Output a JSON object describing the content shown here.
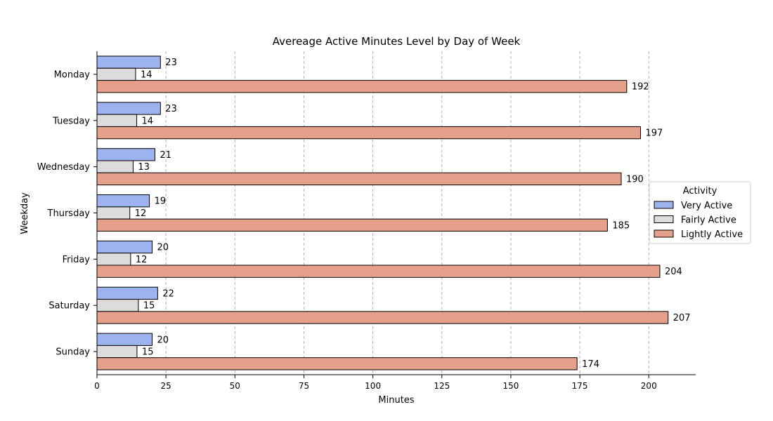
{
  "chart_data": {
    "type": "bar",
    "orientation": "horizontal",
    "title": "Avereage Active Minutes Level by Day of Week",
    "xlabel": "Minutes",
    "ylabel": "Weekday",
    "categories": [
      "Monday",
      "Tuesday",
      "Wednesday",
      "Thursday",
      "Friday",
      "Saturday",
      "Sunday"
    ],
    "series": [
      {
        "name": "Very Active",
        "color": "#9db3f0",
        "values": [
          23,
          23,
          21,
          19,
          20,
          22,
          20
        ],
        "value_labels": [
          "23",
          "23",
          "21",
          "19",
          "20",
          "22",
          "20"
        ]
      },
      {
        "name": "Fairly Active",
        "color": "#dcdcdc",
        "values": [
          14,
          14.4,
          13.1,
          11.9,
          12.2,
          15,
          14.5
        ],
        "value_labels": [
          "14",
          "14",
          "13",
          "12",
          "12",
          "15",
          "15"
        ]
      },
      {
        "name": "Lightly Active",
        "color": "#e5a08a",
        "values": [
          192,
          197,
          190,
          185,
          204,
          207,
          174
        ],
        "value_labels": [
          "192",
          "197",
          "190",
          "185",
          "204",
          "207",
          "174"
        ]
      }
    ],
    "xlim": [
      0,
      217
    ],
    "xticks": [
      "0",
      "25",
      "50",
      "75",
      "100",
      "125",
      "150",
      "175",
      "200"
    ],
    "grid": "x, dashed",
    "legend": {
      "title": "Activity",
      "placement": "right"
    }
  }
}
